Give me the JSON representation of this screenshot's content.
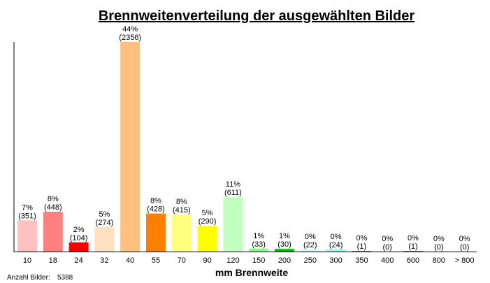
{
  "chart_data": {
    "type": "bar",
    "title": "Brennweitenverteilung der ausgewählten Bilder",
    "xlabel": "mm Brennweite",
    "ylabel": "",
    "categories": [
      "10",
      "18",
      "24",
      "32",
      "40",
      "55",
      "70",
      "90",
      "120",
      "150",
      "200",
      "250",
      "300",
      "350",
      "400",
      "600",
      "800",
      "> 800"
    ],
    "values": [
      351,
      448,
      104,
      274,
      2356,
      428,
      415,
      290,
      611,
      33,
      30,
      22,
      24,
      1,
      0,
      1,
      0,
      0
    ],
    "percent_labels": [
      "7%",
      "8%",
      "2%",
      "5%",
      "44%",
      "8%",
      "8%",
      "5%",
      "11%",
      "1%",
      "1%",
      "0%",
      "0%",
      "0%",
      "0%",
      "0%",
      "0%",
      "0%"
    ],
    "count_labels": [
      "(351)",
      "(448)",
      "(104)",
      "(274)",
      "(2356)",
      "(428)",
      "(415)",
      "(290)",
      "(611)",
      "(33)",
      "(30)",
      "(22)",
      "(24)",
      "(1)",
      "(0)",
      "(1)",
      "(0)",
      "(0)"
    ],
    "colors": [
      "#ffc0c0",
      "#ff8080",
      "#ff0000",
      "#ffe0c0",
      "#ffc080",
      "#ff8000",
      "#ffff80",
      "#ffff00",
      "#c0ffc0",
      "#80ff80",
      "#00c000",
      "#c0ffff",
      "#80ffff",
      "#00c0c0",
      "#c0c0ff",
      "#8080ff",
      "#c0c0c0",
      "#8000ff"
    ],
    "ylim": [
      0,
      2356
    ],
    "grid": false,
    "legend": "none"
  },
  "footer": {
    "count_label": "Anzahl Bilder:",
    "count_value": "5388"
  }
}
